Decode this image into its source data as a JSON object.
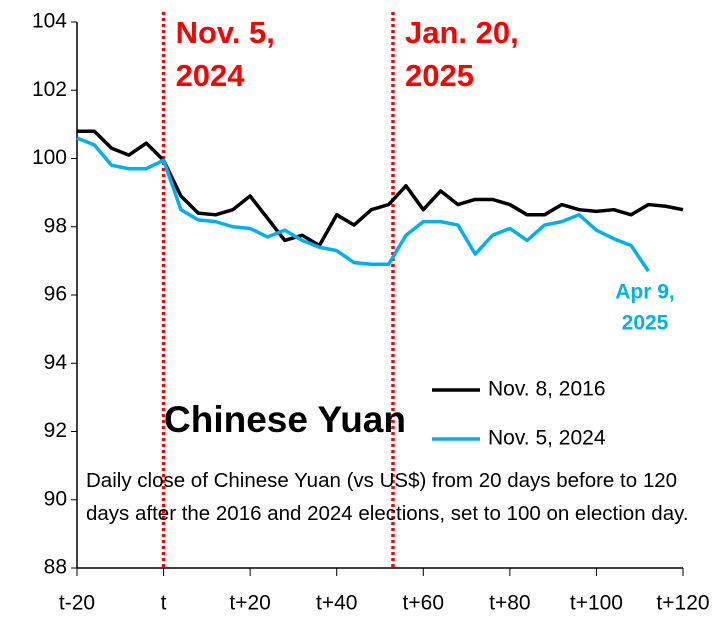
{
  "chart_data": {
    "type": "line",
    "title": "Chinese Yuan",
    "note": "Daily close of Chinese Yuan (vs US$) from 20 days before to 120 days after the 2016 and 2024 elections, set to 100 on election day.",
    "x": [
      -20,
      -16,
      -12,
      -8,
      -4,
      0,
      4,
      8,
      12,
      16,
      20,
      24,
      28,
      32,
      36,
      40,
      44,
      48,
      52,
      56,
      60,
      64,
      68,
      72,
      76,
      80,
      84,
      88,
      92,
      96,
      100,
      104,
      108,
      112,
      116,
      120
    ],
    "series": [
      {
        "name": "Nov. 8, 2016",
        "color": "#000000",
        "values": [
          100.8,
          100.8,
          100.3,
          100.1,
          100.45,
          99.95,
          98.9,
          98.4,
          98.35,
          98.5,
          98.9,
          98.25,
          97.6,
          97.75,
          97.45,
          98.35,
          98.05,
          98.5,
          98.65,
          99.2,
          98.5,
          99.05,
          98.65,
          98.8,
          98.8,
          98.65,
          98.35,
          98.35,
          98.65,
          98.5,
          98.45,
          98.5,
          98.35,
          98.65,
          98.6,
          98.5
        ]
      },
      {
        "name": "Nov. 5, 2024",
        "color": "#00b0f0",
        "values": [
          100.6,
          100.4,
          99.8,
          99.7,
          99.7,
          99.95,
          98.5,
          98.2,
          98.15,
          98.0,
          97.95,
          97.7,
          97.9,
          97.6,
          97.4,
          97.3,
          96.95,
          96.9,
          96.9,
          97.75,
          98.15,
          98.15,
          98.05,
          97.2,
          97.75,
          97.95,
          97.6,
          98.05,
          98.15,
          98.35,
          97.9,
          97.65,
          97.45,
          96.7,
          null,
          null
        ]
      }
    ],
    "events": [
      {
        "x": 0,
        "color": "#ff0000",
        "lines": [
          "Nov. 5,",
          "2024"
        ]
      },
      {
        "x": 53,
        "color": "#ff0000",
        "lines": [
          "Jan. 20,",
          "2025"
        ]
      }
    ],
    "end_label": {
      "color": "#00b0f0",
      "lines": [
        "Apr 9,",
        "2025"
      ]
    },
    "xlim": [
      -20,
      120
    ],
    "xticks": [
      {
        "value": -20,
        "label": "t-20"
      },
      {
        "value": 0,
        "label": "t"
      },
      {
        "value": 20,
        "label": "t+20"
      },
      {
        "value": 40,
        "label": "t+40"
      },
      {
        "value": 60,
        "label": "t+60"
      },
      {
        "value": 80,
        "label": "t+80"
      },
      {
        "value": 100,
        "label": "t+100"
      },
      {
        "value": 120,
        "label": "t+120"
      }
    ],
    "ylim": [
      88,
      104
    ],
    "yticks": [
      88,
      90,
      92,
      94,
      96,
      98,
      100,
      102,
      104
    ]
  }
}
